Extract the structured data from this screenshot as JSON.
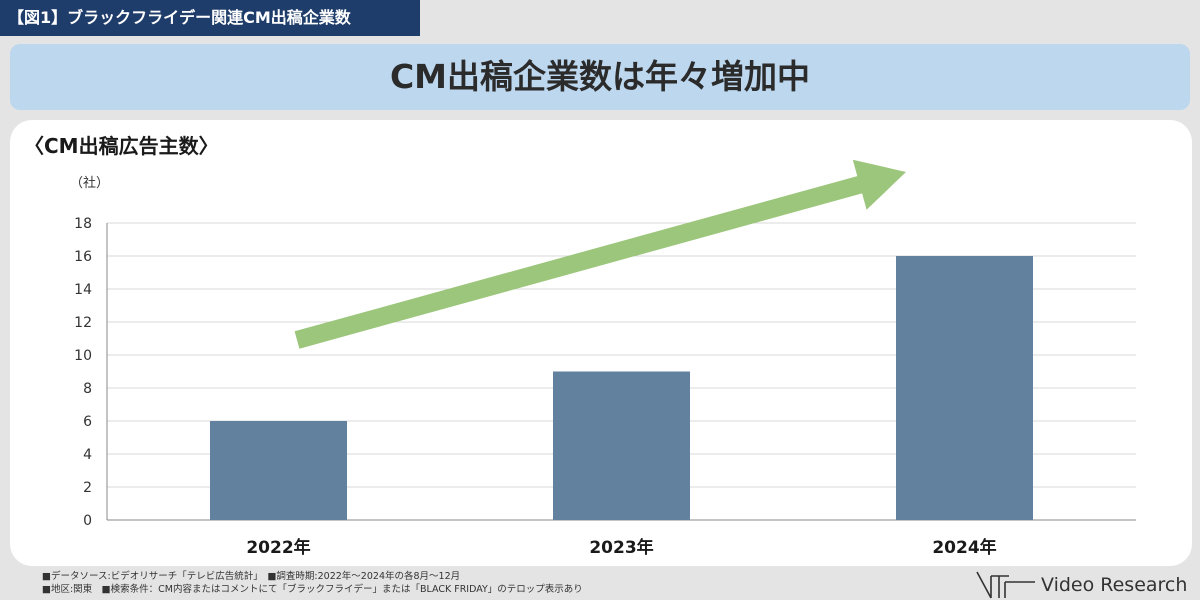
{
  "figure_tag": "【図1】ブラックフライデー関連CM出稿企業数",
  "headline": "CM出稿企業数は年々増加中",
  "chart_data": {
    "type": "bar",
    "title": "〈CM出稿広告主数〉",
    "ylabel": "（社）",
    "xlabel": "",
    "categories": [
      "2022年",
      "2023年",
      "2024年"
    ],
    "values": [
      6,
      9,
      16
    ],
    "ylim": [
      0,
      18
    ],
    "yticks": [
      0,
      2,
      4,
      6,
      8,
      10,
      12,
      14,
      16,
      18
    ],
    "grid": true,
    "bar_color": "#62819f",
    "trend_arrow_color": "#9cc67b"
  },
  "notes": {
    "line1": "■データソース:ビデオリサーチ「テレビ広告統計」　■調査時期:2022年～2024年の各8月～12月",
    "line2": "■地区:関東　■検索条件：CM内容またはコメントにて「ブラックフライデー」または「BLACK FRIDAY」のテロップ表示あり"
  },
  "logo": {
    "text": "Video Research"
  },
  "colors": {
    "tag_bg": "#1f3d6b",
    "headline_bg": "#bcd7ee",
    "page_bg": "#e4e4e4"
  }
}
